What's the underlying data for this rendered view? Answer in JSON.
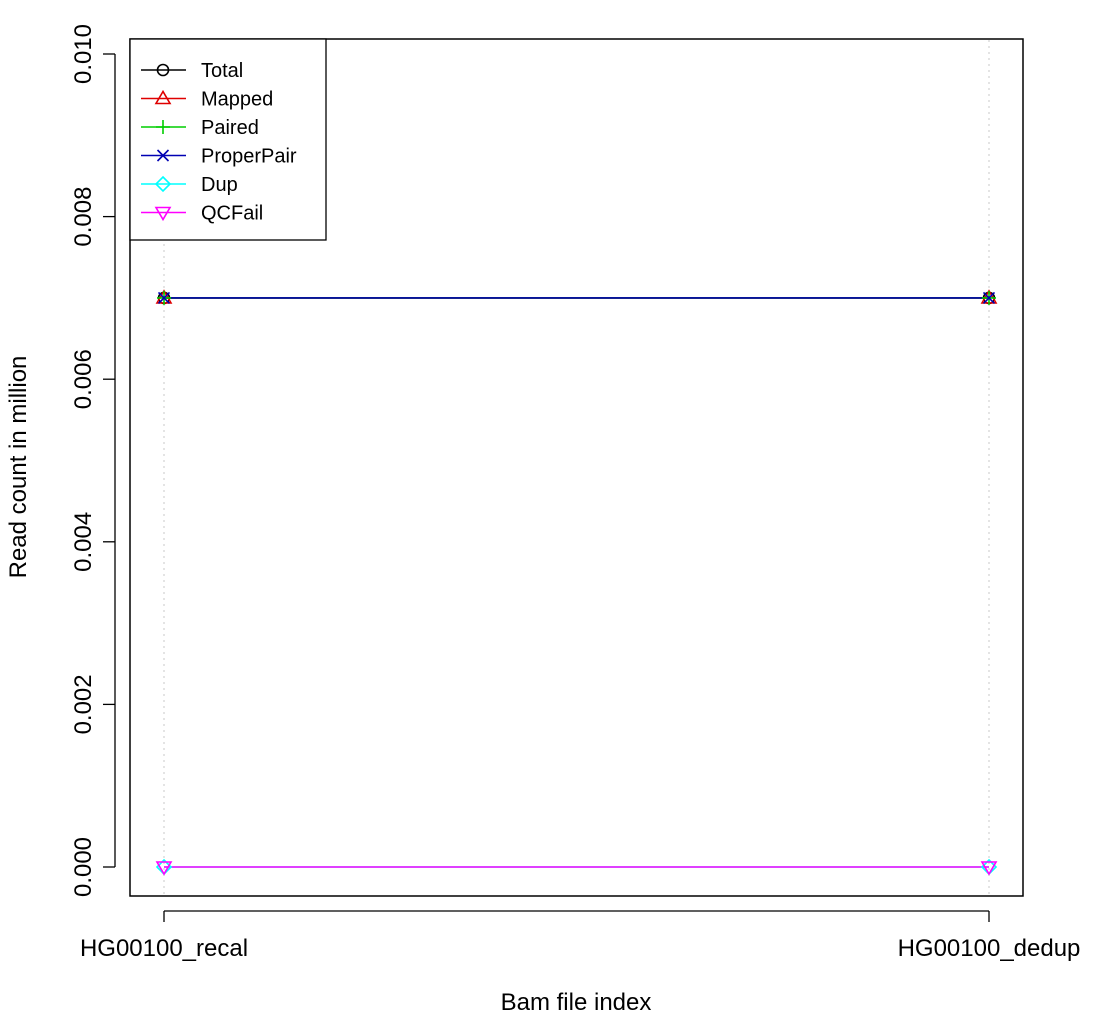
{
  "chart_data": {
    "type": "line",
    "categories": [
      "HG00100_recal",
      "HG00100_dedup"
    ],
    "xlabel": "Bam file index",
    "ylabel": "Read count in million",
    "ylim": [
      0,
      0.01
    ],
    "yticks": [
      "0.000",
      "0.002",
      "0.004",
      "0.006",
      "0.008",
      "0.010"
    ],
    "grid": "vertical dotted",
    "legend_position": "top-left",
    "series": [
      {
        "name": "Total",
        "values": [
          0.007,
          0.007
        ],
        "color": "#000000",
        "marker": "circle"
      },
      {
        "name": "Mapped",
        "values": [
          0.007,
          0.007
        ],
        "color": "#DF0000",
        "marker": "triangle-up"
      },
      {
        "name": "Paired",
        "values": [
          0.007,
          0.007
        ],
        "color": "#00CD00",
        "marker": "plus"
      },
      {
        "name": "ProperPair",
        "values": [
          0.007,
          0.007
        ],
        "color": "#0000B3",
        "marker": "cross"
      },
      {
        "name": "Dup",
        "values": [
          0,
          0
        ],
        "color": "#00FFFF",
        "marker": "diamond"
      },
      {
        "name": "QCFail",
        "values": [
          0,
          0
        ],
        "color": "#FF00FF",
        "marker": "triangle-down"
      }
    ]
  }
}
